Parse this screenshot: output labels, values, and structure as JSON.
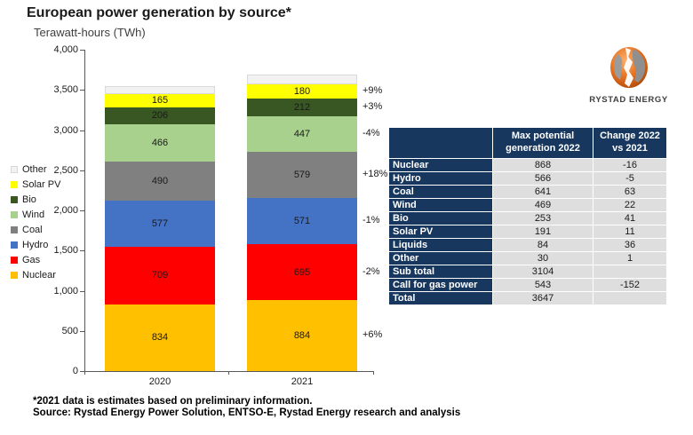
{
  "title": "European power generation by source*",
  "subtitle": "Terawatt-hours (TWh)",
  "chart_data": {
    "type": "bar",
    "subtype": "stacked",
    "categories": [
      "2020",
      "2021"
    ],
    "unit": "TWh",
    "ylim": [
      0,
      4000
    ],
    "ytick_step": 500,
    "grid": false,
    "legend_position": "left",
    "series": [
      {
        "name": "Nuclear",
        "color": "#FFC000",
        "values": [
          834,
          884
        ],
        "change_label": "+6%"
      },
      {
        "name": "Gas",
        "color": "#FF0000",
        "values": [
          709,
          695
        ],
        "change_label": "-2%"
      },
      {
        "name": "Hydro",
        "color": "#4472C4",
        "values": [
          577,
          571
        ],
        "change_label": "-1%"
      },
      {
        "name": "Coal",
        "color": "#808080",
        "values": [
          490,
          579
        ],
        "change_label": "+18%"
      },
      {
        "name": "Wind",
        "color": "#A9D18E",
        "values": [
          466,
          447
        ],
        "change_label": "-4%"
      },
      {
        "name": "Bio",
        "color": "#385723",
        "values": [
          206,
          212
        ],
        "change_label": "+3%"
      },
      {
        "name": "Solar PV",
        "color": "#FFFF00",
        "values": [
          165,
          180
        ],
        "change_label": "+9%"
      },
      {
        "name": "Other",
        "color": "#F2F2F2",
        "values": [
          105,
          120
        ],
        "values_estimated": true,
        "labels_hidden": true,
        "border_color": "#D9D9D9",
        "change_label": null
      }
    ],
    "legend_order_top_to_bottom": [
      "Other",
      "Solar PV",
      "Bio",
      "Wind",
      "Coal",
      "Hydro",
      "Gas",
      "Nuclear"
    ]
  },
  "table": {
    "headers": [
      "",
      "Max potential generation 2022",
      "Change 2022 vs 2021"
    ],
    "rows": [
      {
        "label": "Nuclear",
        "gen": "868",
        "change": "-16"
      },
      {
        "label": "Hydro",
        "gen": "566",
        "change": "-5"
      },
      {
        "label": "Coal",
        "gen": "641",
        "change": "63"
      },
      {
        "label": "Wind",
        "gen": "469",
        "change": "22"
      },
      {
        "label": "Bio",
        "gen": "253",
        "change": "41"
      },
      {
        "label": "Solar PV",
        "gen": "191",
        "change": "11"
      },
      {
        "label": "Liquids",
        "gen": "84",
        "change": "36"
      },
      {
        "label": "Other",
        "gen": "30",
        "change": "1"
      },
      {
        "label": "Sub total",
        "gen": "3104",
        "change": ""
      },
      {
        "label": "Call for gas power",
        "gen": "543",
        "change": "-152"
      },
      {
        "label": "Total",
        "gen": "3647",
        "change": ""
      }
    ],
    "header_bg": "#17375E",
    "cell_bg": "#DEDEDE"
  },
  "logo": {
    "text": "RYSTAD ENERGY"
  },
  "footnotes": [
    "*2021 data is estimates based on preliminary information.",
    "Source: Rystad Energy Power Solution,  ENTSO-E, Rystad Energy research and analysis"
  ]
}
